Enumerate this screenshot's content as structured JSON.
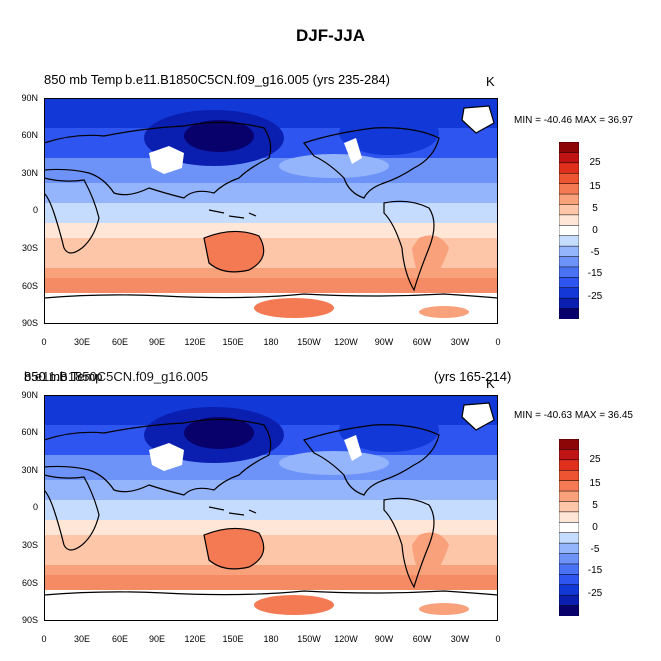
{
  "figure": {
    "title": "DJF-JJA",
    "colors": {
      "levels": [
        "#08006b",
        "#0a1fb0",
        "#1238d8",
        "#2f55f0",
        "#4a72f5",
        "#6e93f8",
        "#94b4fb",
        "#c5dcfe",
        "#ffffff",
        "#ffe6d6",
        "#fdc6a8",
        "#f9a17a",
        "#f37a53",
        "#ec5432",
        "#e0301c",
        "#bf1413",
        "#8c0608"
      ],
      "land_mask": "#ffffff",
      "coast": "#000000"
    }
  },
  "panels": [
    {
      "left_title": "850 mb Temp",
      "center_title": "b.e11.B1850C5CN.f09_g16.005 (yrs 235-284)",
      "right_title": "",
      "units": "K",
      "stats": "MIN = -40.46 MAX =  36.97",
      "min": -40.46,
      "max": 36.97
    },
    {
      "left_title": "850 mb Temp",
      "center_title": "b.e11.B1850C5CN.f09_g16.005",
      "right_title": "(yrs 165-214)",
      "units": "K",
      "stats": "MIN = -40.63 MAX =  36.45",
      "min": -40.63,
      "max": 36.45
    }
  ],
  "axes": {
    "lat_labels": [
      "90N",
      "60N",
      "30N",
      "0",
      "30S",
      "60S",
      "90S"
    ],
    "lon_labels": [
      "0",
      "30E",
      "60E",
      "90E",
      "120E",
      "150E",
      "180",
      "150W",
      "120W",
      "90W",
      "60W",
      "30W",
      "0"
    ]
  },
  "colorbar": {
    "labels": [
      "25",
      "15",
      "5",
      "0",
      "-5",
      "-15",
      "-25"
    ]
  }
}
